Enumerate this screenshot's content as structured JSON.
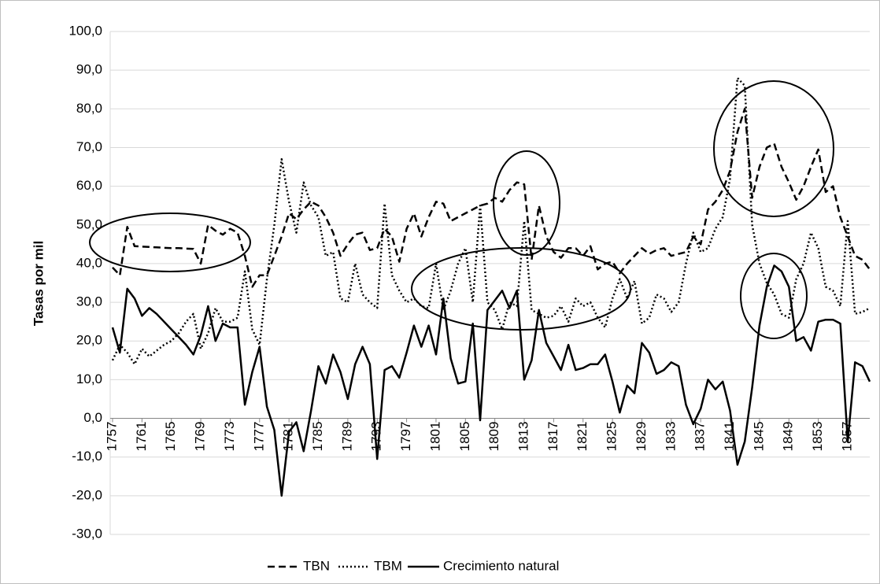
{
  "chart_data": {
    "type": "line",
    "y_label": "Tasas por mil",
    "x": [
      1757,
      1758,
      1759,
      1760,
      1761,
      1762,
      1763,
      1764,
      1765,
      1766,
      1767,
      1768,
      1769,
      1770,
      1771,
      1772,
      1773,
      1774,
      1775,
      1776,
      1777,
      1778,
      1779,
      1780,
      1781,
      1782,
      1783,
      1784,
      1785,
      1786,
      1787,
      1788,
      1789,
      1790,
      1791,
      1792,
      1793,
      1794,
      1795,
      1796,
      1797,
      1798,
      1799,
      1800,
      1801,
      1802,
      1803,
      1804,
      1805,
      1806,
      1807,
      1808,
      1809,
      1810,
      1811,
      1812,
      1813,
      1814,
      1815,
      1816,
      1817,
      1818,
      1819,
      1820,
      1821,
      1822,
      1823,
      1824,
      1825,
      1826,
      1827,
      1828,
      1829,
      1830,
      1831,
      1832,
      1833,
      1834,
      1835,
      1836,
      1837,
      1838,
      1839,
      1840,
      1841,
      1842,
      1843,
      1844,
      1845,
      1846,
      1847,
      1848,
      1849,
      1850,
      1851,
      1852,
      1853,
      1854,
      1855,
      1856,
      1857,
      1858,
      1859,
      1860
    ],
    "xlim": [
      1757,
      1860
    ],
    "xticks": [
      1757,
      1761,
      1765,
      1769,
      1773,
      1777,
      1781,
      1785,
      1789,
      1793,
      1797,
      1801,
      1805,
      1809,
      1813,
      1817,
      1821,
      1825,
      1829,
      1833,
      1837,
      1841,
      1845,
      1849,
      1853,
      1857
    ],
    "ylim": [
      -30,
      100
    ],
    "yticks": [
      {
        "value": -30,
        "label": "-30,0"
      },
      {
        "value": -20,
        "label": "-20,0"
      },
      {
        "value": -10,
        "label": "-10,0"
      },
      {
        "value": 0,
        "label": "0,0"
      },
      {
        "value": 10,
        "label": "10,0"
      },
      {
        "value": 20,
        "label": "20,0"
      },
      {
        "value": 30,
        "label": "30,0"
      },
      {
        "value": 40,
        "label": "40,0"
      },
      {
        "value": 50,
        "label": "50,0"
      },
      {
        "value": 60,
        "label": "60,0"
      },
      {
        "value": 70,
        "label": "70,0"
      },
      {
        "value": 80,
        "label": "80,0"
      },
      {
        "value": 90,
        "label": "90,0"
      },
      {
        "value": 100,
        "label": "100,0"
      }
    ],
    "grid": true,
    "legend": "bottom",
    "series": [
      {
        "name": "TBN",
        "color": "#000000",
        "dash": "9,5",
        "values": [
          39,
          37,
          49.5,
          44.5,
          44.4,
          44.3,
          44.2,
          44.1,
          44,
          44,
          43.9,
          43.8,
          40,
          50,
          48.5,
          47.5,
          49,
          48,
          42,
          34,
          37,
          37,
          42,
          47,
          53,
          51.5,
          54,
          56,
          55,
          52,
          48,
          42,
          45,
          47.5,
          48,
          43.5,
          44,
          49,
          47,
          40.5,
          49,
          53,
          47,
          52,
          56,
          55.5,
          51,
          52,
          53,
          54,
          55,
          55.5,
          57,
          56,
          59,
          61,
          60.5,
          41,
          55,
          47,
          43,
          41.5,
          44,
          44,
          42,
          44.5,
          38.5,
          40,
          40.5,
          37.5,
          40,
          42,
          44,
          42.5,
          43.5,
          44,
          42,
          42.5,
          43,
          47,
          45,
          54,
          56,
          59,
          64,
          74,
          80,
          57,
          65,
          70,
          71,
          65,
          61,
          56.5,
          60,
          65,
          69.5,
          58.5,
          60,
          52,
          47,
          42,
          41,
          38.5
        ]
      },
      {
        "name": "TBM",
        "color": "#000000",
        "dash": "2,3",
        "values": [
          15,
          19,
          17,
          14,
          18,
          16,
          17.5,
          19,
          20,
          22,
          25,
          27,
          18,
          22,
          28.5,
          25,
          25,
          26,
          38,
          23,
          19,
          36,
          50,
          67,
          56,
          48,
          61,
          55,
          52,
          42,
          43,
          31,
          30,
          40,
          32,
          30,
          28.5,
          55.5,
          37,
          33,
          30,
          31,
          29,
          28.5,
          40,
          28,
          33,
          40,
          44,
          30,
          55,
          30,
          28,
          23,
          30,
          29,
          51,
          28,
          27,
          26,
          26.5,
          29,
          25,
          31,
          29,
          30,
          26,
          23.5,
          31,
          36,
          31,
          35.5,
          24.5,
          26,
          32,
          31,
          27.5,
          30,
          40,
          48,
          43,
          44,
          49,
          52,
          62,
          88,
          86,
          50,
          40,
          35,
          32,
          27,
          26,
          36,
          40,
          48,
          44,
          34,
          33,
          29,
          51,
          27,
          27.5,
          28.5
        ]
      },
      {
        "name": "Crecimiento natural",
        "color": "#000000",
        "dash": "",
        "values": [
          23.5,
          17,
          33.5,
          31,
          26.5,
          28.5,
          27,
          25,
          23,
          21,
          19,
          16.5,
          21.5,
          29,
          20,
          24.5,
          23.5,
          23.5,
          3.5,
          12,
          18.5,
          3,
          -3,
          -20,
          -3.5,
          -1,
          -8.5,
          2,
          13.5,
          9,
          16.5,
          12,
          5,
          14,
          18.5,
          14,
          -10.5,
          12.5,
          13.5,
          10.5,
          17,
          24,
          18.5,
          24,
          16.5,
          31,
          15.5,
          9,
          9.5,
          24.5,
          -0.5,
          28,
          30.5,
          33,
          28.5,
          33,
          10,
          15,
          28,
          19.5,
          16,
          12.5,
          19,
          12.5,
          13,
          14,
          14,
          16.5,
          9.5,
          1.5,
          8.5,
          6.5,
          19.5,
          17,
          11.5,
          12.5,
          14.5,
          13.5,
          3.5,
          -1.5,
          2.5,
          10,
          7.5,
          9.5,
          2,
          -12,
          -6,
          8,
          24,
          34,
          39.5,
          38,
          34,
          20,
          21,
          17.5,
          25,
          25.5,
          25.5,
          24.5,
          -6,
          14.5,
          13.5,
          9.5
        ]
      }
    ]
  }
}
